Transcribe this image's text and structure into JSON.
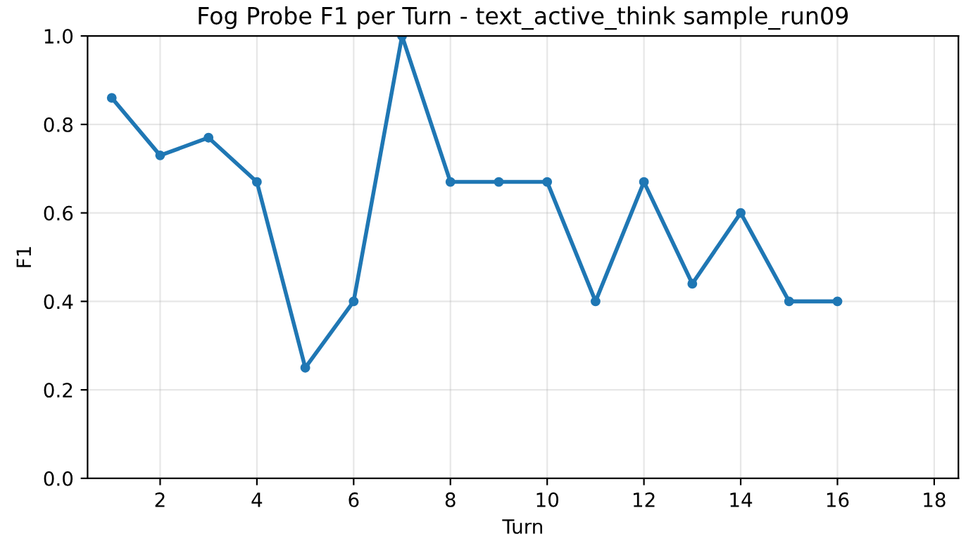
{
  "chart_data": {
    "type": "line",
    "title": "Fog Probe F1 per Turn - text_active_think sample_run09",
    "xlabel": "Turn",
    "ylabel": "F1",
    "x": [
      1,
      2,
      3,
      4,
      5,
      6,
      7,
      8,
      9,
      10,
      11,
      12,
      13,
      14,
      15,
      16
    ],
    "series": [
      {
        "color": "#1f77b4",
        "values": [
          0.86,
          0.73,
          0.77,
          0.67,
          0.25,
          0.4,
          1.0,
          0.67,
          0.67,
          0.67,
          0.4,
          0.67,
          0.44,
          0.6,
          0.4,
          0.4
        ]
      }
    ],
    "xlim": [
      0.5,
      18.5
    ],
    "ylim": [
      0,
      1
    ],
    "xticks": [
      2,
      4,
      6,
      8,
      10,
      12,
      14,
      16,
      18
    ],
    "yticks": [
      {
        "value": 0,
        "label": "0.0"
      },
      0.2,
      0.4,
      0.6,
      0.8,
      {
        "value": 1,
        "label": "1.0"
      }
    ],
    "grid": true,
    "marker": "circle",
    "line_style": "solid"
  }
}
